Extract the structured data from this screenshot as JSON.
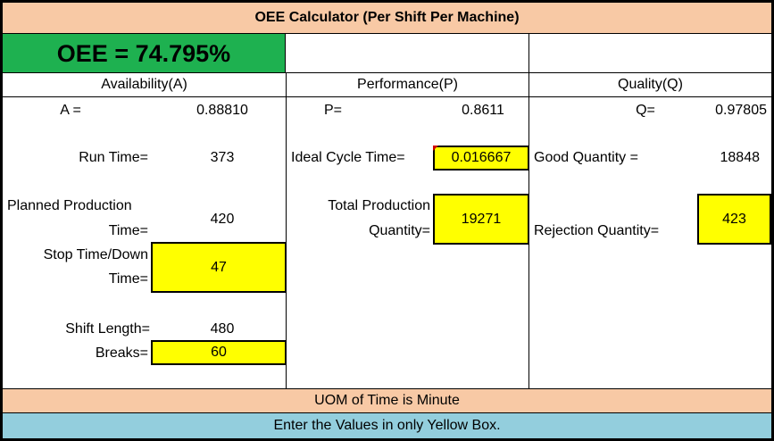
{
  "title": "OEE Calculator (Per Shift Per Machine)",
  "oee_display": "OEE = 74.795%",
  "sections": {
    "availability": {
      "header": "Availability(A)",
      "a_label": "A =",
      "a_value": "0.88810",
      "run_time_label": "Run Time=",
      "run_time_value": "373",
      "planned_label_1": "Planned Production",
      "planned_label_2": "Time=",
      "planned_value": "420",
      "stop_label_1": "Stop Time/Down",
      "stop_label_2": "Time=",
      "stop_value": "47",
      "shift_label": "Shift Length=",
      "shift_value": "480",
      "breaks_label": "Breaks=",
      "breaks_value": "60"
    },
    "performance": {
      "header": "Performance(P)",
      "p_label": "P=",
      "p_value": "0.8611",
      "ict_label": "Ideal Cycle Time=",
      "ict_value": "0.016667",
      "tpq_label_1": "Total Production",
      "tpq_label_2": "Quantity=",
      "tpq_value": "19271"
    },
    "quality": {
      "header": "Quality(Q)",
      "q_label": "Q=",
      "q_value": "0.97805",
      "good_label": "Good Quantity =",
      "good_value": "18848",
      "reject_label": "Rejection Quantity=",
      "reject_value": "423"
    }
  },
  "footer": {
    "uom": "UOM of Time is Minute",
    "note": "Enter the Values in only Yellow Box."
  },
  "colors": {
    "title_bg": "#f8c9a5",
    "oee_bg": "#1eb150",
    "input_bg": "#ffff00",
    "note_bg": "#93cedd",
    "comment_marker": "#d00000"
  }
}
